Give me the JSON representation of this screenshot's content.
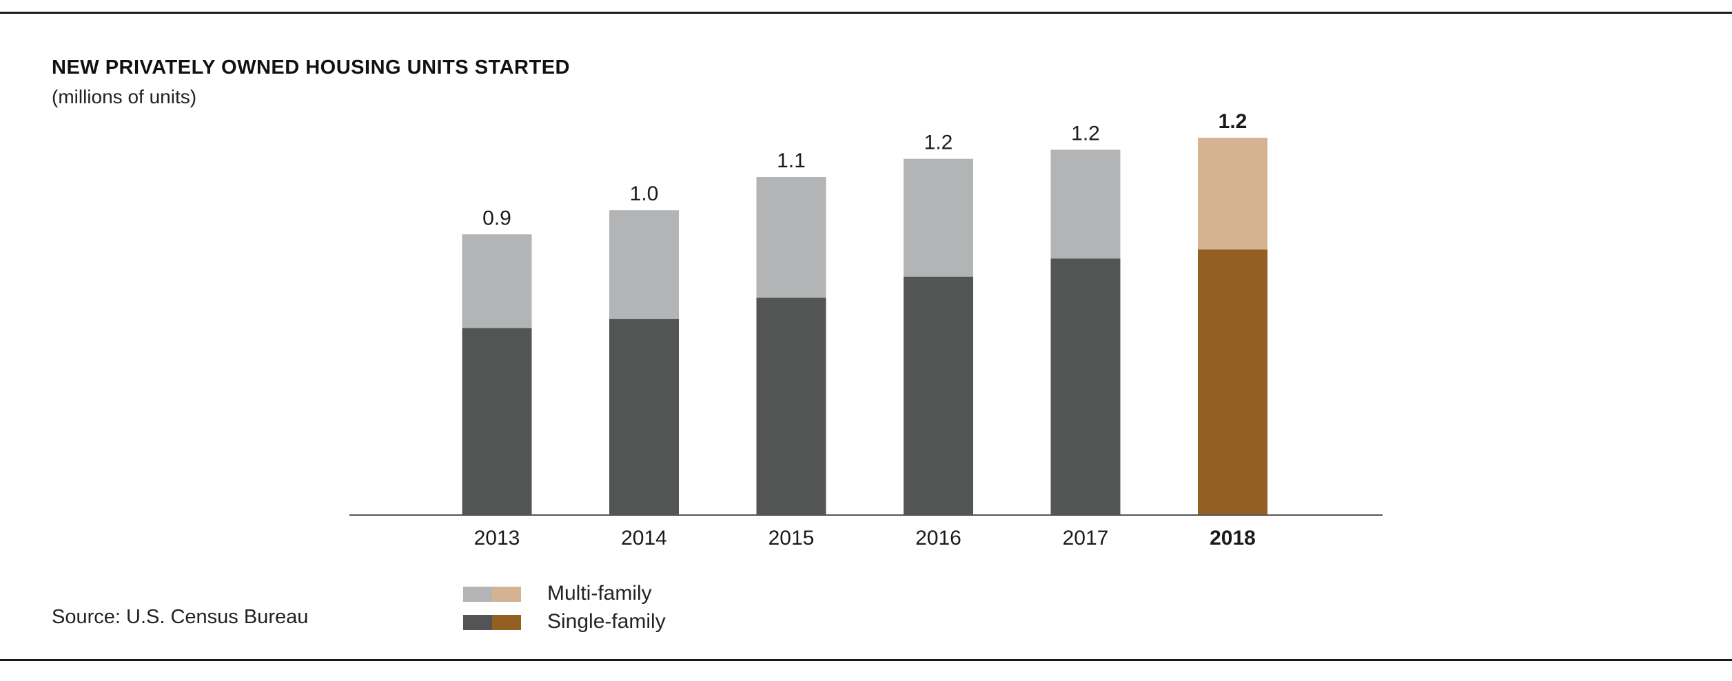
{
  "header": {
    "title": "NEW PRIVATELY OWNED HOUSING UNITS STARTED",
    "subtitle": "(millions of units)"
  },
  "source": "Source: U.S. Census Bureau",
  "legend": {
    "multi": "Multi-family",
    "single": "Single-family"
  },
  "colors": {
    "single_gray": "#535554",
    "multi_gray": "#b3b4b5",
    "single_highlight": "#945f23",
    "multi_highlight": "#d3b392",
    "axis": "#555555"
  },
  "chart_data": {
    "type": "bar",
    "stacked": true,
    "title": "NEW PRIVATELY OWNED HOUSING UNITS STARTED",
    "subtitle": "(millions of units)",
    "xlabel": "",
    "ylabel": "",
    "categories": [
      "2013",
      "2014",
      "2015",
      "2016",
      "2017",
      "2018"
    ],
    "series": [
      {
        "name": "Single-family",
        "values": [
          0.62,
          0.65,
          0.72,
          0.79,
          0.85,
          0.88
        ]
      },
      {
        "name": "Multi-family",
        "values": [
          0.31,
          0.36,
          0.4,
          0.39,
          0.36,
          0.37
        ]
      }
    ],
    "totals_labels": [
      "0.9",
      "1.0",
      "1.1",
      "1.2",
      "1.2",
      "1.2"
    ],
    "highlight_category": "2018",
    "ylim": [
      0,
      1.25
    ],
    "grid": false,
    "legend_position": "bottom"
  }
}
